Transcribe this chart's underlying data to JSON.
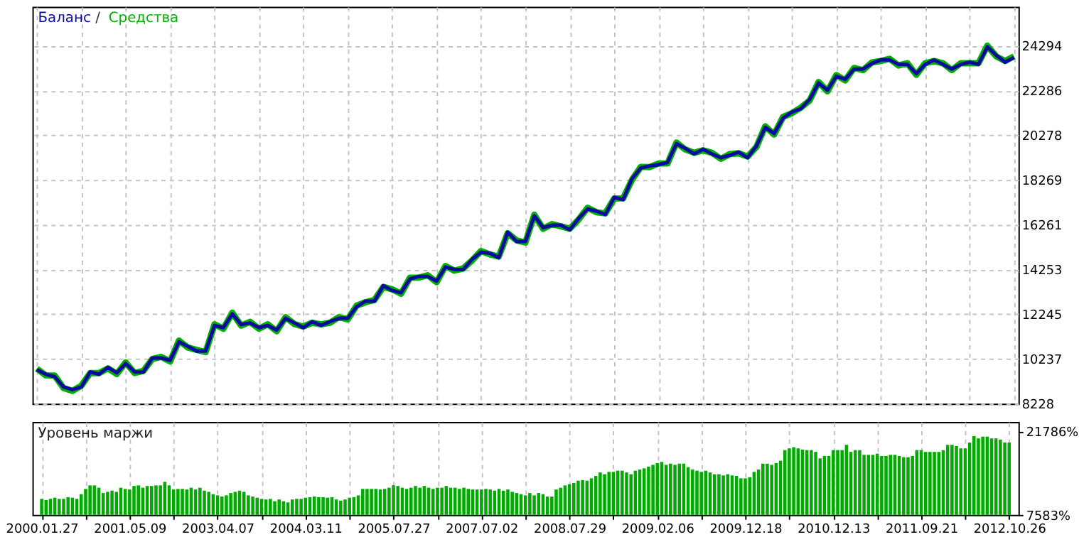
{
  "chart_data": [
    {
      "type": "line",
      "annotations": [
        "/"
      ],
      "grid": true,
      "tick_labels": "y",
      "categories": [
        null,
        null,
        null,
        null,
        null,
        null,
        null,
        null,
        null,
        null,
        null,
        null,
        null,
        null,
        null,
        null,
        null,
        null,
        null,
        null,
        null,
        null,
        null,
        null,
        null,
        null,
        null,
        null,
        null,
        null,
        null,
        null,
        null,
        null,
        null,
        null,
        null,
        null,
        null,
        null,
        null,
        null,
        null,
        null,
        null,
        null,
        null,
        null,
        null,
        null,
        null,
        null,
        null,
        null,
        null,
        null,
        null,
        null,
        null,
        null,
        null,
        null,
        null,
        null,
        null,
        null,
        null,
        null,
        null,
        null,
        null,
        null,
        null,
        null,
        null,
        null,
        null,
        null,
        null,
        null,
        null,
        null,
        null,
        null,
        null,
        null,
        null,
        null,
        null,
        null,
        null,
        null,
        null,
        null,
        null,
        null,
        null,
        null,
        null,
        null,
        null,
        null,
        null,
        null,
        null,
        null,
        null,
        null,
        null,
        null,
        null
      ],
      "ylim": [
        8228,
        26050
      ],
      "yticks": [
        8228,
        10237,
        12245,
        14253,
        16261,
        18269,
        20278,
        22286,
        24294
      ],
      "series": [
        {
          "name": "Баланс",
          "color": "#0a0aa0",
          "values": [
            9750,
            9550,
            9440,
            8980,
            8850,
            8980,
            9650,
            9550,
            9860,
            9610,
            10030,
            9650,
            9650,
            10280,
            10280,
            10170,
            11010,
            10800,
            10590,
            10590,
            11740,
            11640,
            12260,
            11780,
            11850,
            11640,
            11740,
            11530,
            12060,
            11850,
            11640,
            11910,
            11740,
            11910,
            12060,
            12060,
            12580,
            12830,
            12830,
            13520,
            13310,
            13210,
            13830,
            13940,
            13940,
            13730,
            14360,
            14250,
            14250,
            14710,
            15030,
            14980,
            14780,
            15930,
            15510,
            15510,
            16660,
            16130,
            16240,
            16240,
            16030,
            16550,
            16970,
            16870,
            16720,
            17490,
            17390,
            18330,
            18810,
            18900,
            18960,
            19060,
            19900,
            19690,
            19440,
            19650,
            19440,
            19270,
            19380,
            19520,
            19270,
            19800,
            20630,
            20360,
            21050,
            21320,
            21470,
            21890,
            22620,
            22300,
            22930,
            22790,
            23250,
            23250,
            23500,
            23660,
            23660,
            23460,
            23460,
            23040,
            23460,
            23660,
            23460,
            23250,
            23460,
            23560,
            23460,
            24250,
            23870,
            23560,
            23770
          ]
        },
        {
          "name": "Средства",
          "color": "#00b000",
          "values": [
            9800,
            9500,
            9490,
            8930,
            8800,
            9030,
            9600,
            9600,
            9810,
            9560,
            10080,
            9600,
            9700,
            10230,
            10330,
            10120,
            11060,
            10750,
            10640,
            10540,
            11790,
            11590,
            12310,
            11730,
            11900,
            11590,
            11790,
            11480,
            12110,
            11800,
            11690,
            11860,
            11790,
            11860,
            12110,
            12010,
            12630,
            12780,
            12880,
            13470,
            13360,
            13160,
            13880,
            13890,
            13990,
            13680,
            14410,
            14200,
            14300,
            14660,
            15080,
            14930,
            14830,
            15880,
            15560,
            15460,
            16710,
            16080,
            16290,
            16190,
            16080,
            16500,
            17020,
            16820,
            16770,
            17440,
            17440,
            18280,
            18860,
            18850,
            19010,
            19010,
            19950,
            19640,
            19490,
            19600,
            19490,
            19220,
            19430,
            19470,
            19320,
            19750,
            20680,
            20310,
            21100,
            21270,
            21520,
            21840,
            22670,
            22250,
            22980,
            22740,
            23300,
            23200,
            23550,
            23610,
            23710,
            23410,
            23510,
            22990,
            23510,
            23610,
            23510,
            23200,
            23510,
            23510,
            23510,
            24300,
            23820,
            23610,
            23820
          ]
        }
      ]
    },
    {
      "type": "bar",
      "title": "Уровень маржи",
      "grid": "x",
      "color": "#00aa00",
      "ylim": [
        7583,
        23400
      ],
      "yticks": [
        {
          "value": 7583,
          "label": "7583%"
        },
        {
          "value": 21786,
          "label": "21786%"
        }
      ],
      "categories": [
        "2000.01.27",
        null,
        null,
        null,
        null,
        null,
        null,
        null,
        null,
        null,
        null,
        null,
        null,
        null,
        null,
        null,
        null,
        null,
        null,
        null,
        "2001.05.09",
        null,
        null,
        null,
        null,
        null,
        null,
        null,
        null,
        null,
        null,
        null,
        null,
        null,
        null,
        null,
        null,
        null,
        null,
        null,
        "2003.04.07",
        null,
        null,
        null,
        null,
        null,
        null,
        null,
        null,
        null,
        null,
        null,
        null,
        null,
        null,
        null,
        null,
        null,
        null,
        null,
        "2004.03.11",
        null,
        null,
        null,
        null,
        null,
        null,
        null,
        null,
        null,
        null,
        null,
        null,
        null,
        null,
        null,
        null,
        null,
        null,
        null,
        "2005.07.27",
        null,
        null,
        null,
        null,
        null,
        null,
        null,
        null,
        null,
        null,
        null,
        null,
        null,
        null,
        null,
        null,
        null,
        null,
        null,
        "2007.07.02",
        null,
        null,
        null,
        null,
        null,
        null,
        null,
        null,
        null,
        null,
        null,
        null,
        null,
        null,
        null,
        null,
        null,
        null,
        null,
        "2008.07.29",
        null,
        null,
        null,
        null,
        null,
        null,
        null,
        null,
        null,
        null,
        null,
        null,
        null,
        null,
        null,
        null,
        null,
        null,
        null,
        "2009.02.06",
        null,
        null,
        null,
        null,
        null,
        null,
        null,
        null,
        null,
        null,
        null,
        null,
        null,
        null,
        null,
        null,
        null,
        null,
        null,
        "2009.12.18",
        null,
        null,
        null,
        null,
        null,
        null,
        null,
        null,
        null,
        null,
        null,
        null,
        null,
        null,
        null,
        null,
        null,
        null,
        null,
        "2010.12.13",
        null,
        null,
        null,
        null,
        null,
        null,
        null,
        null,
        null,
        null,
        null,
        null,
        null,
        null,
        null,
        null,
        null,
        null,
        null,
        "2011.09.21",
        null,
        null,
        null,
        null,
        null,
        null,
        null,
        null,
        null,
        null,
        null,
        null,
        null,
        null,
        null,
        null,
        null,
        null,
        null,
        "2012.10.26"
      ],
      "values": [
        10300,
        10100,
        10300,
        10500,
        10300,
        10300,
        10600,
        10500,
        10300,
        11100,
        12000,
        12600,
        12600,
        12200,
        11300,
        11500,
        11700,
        11500,
        12200,
        12000,
        11900,
        12500,
        12600,
        12200,
        12500,
        12500,
        12600,
        12600,
        13200,
        12600,
        11900,
        12000,
        12000,
        11900,
        12200,
        11900,
        12200,
        11700,
        11500,
        11100,
        10900,
        10700,
        10900,
        11300,
        11500,
        11700,
        11500,
        10900,
        10700,
        10500,
        10300,
        10200,
        10300,
        9900,
        10200,
        9900,
        9700,
        10200,
        10300,
        10300,
        10500,
        10600,
        10700,
        10600,
        10600,
        10500,
        10600,
        10200,
        10000,
        10200,
        10500,
        10600,
        10900,
        12000,
        12000,
        12000,
        12000,
        11900,
        12000,
        12200,
        12600,
        12500,
        12200,
        12000,
        12200,
        12500,
        12200,
        12500,
        12200,
        12000,
        12200,
        12200,
        12500,
        12200,
        12200,
        12000,
        12200,
        12000,
        11900,
        11900,
        11900,
        12000,
        11900,
        11700,
        12000,
        11700,
        11900,
        11500,
        11300,
        11100,
        10900,
        11300,
        10900,
        11300,
        11100,
        10700,
        10700,
        11900,
        12200,
        12600,
        12800,
        13000,
        13400,
        13500,
        13400,
        13800,
        14200,
        14800,
        14500,
        14900,
        14900,
        15100,
        15100,
        14800,
        14500,
        15100,
        15300,
        15500,
        15800,
        16100,
        16400,
        16600,
        16100,
        16300,
        16100,
        16300,
        16300,
        15700,
        15300,
        15100,
        14900,
        15100,
        14800,
        14500,
        14500,
        14300,
        14500,
        14300,
        14200,
        13800,
        13800,
        14000,
        14900,
        15300,
        16300,
        16300,
        16100,
        16400,
        16800,
        18600,
        18900,
        19100,
        18900,
        18700,
        18600,
        18600,
        18300,
        17200,
        17600,
        17600,
        18600,
        18600,
        18600,
        19500,
        18300,
        18600,
        18600,
        17800,
        17800,
        17800,
        18000,
        17600,
        17600,
        17800,
        17800,
        17600,
        17400,
        17400,
        17600,
        18600,
        18600,
        18300,
        18300,
        18300,
        18300,
        18600,
        19500,
        19500,
        19300,
        18900,
        18900,
        19900,
        21000,
        20600,
        20900,
        20900,
        20600,
        20600,
        20400,
        19900,
        19900
      ]
    }
  ]
}
